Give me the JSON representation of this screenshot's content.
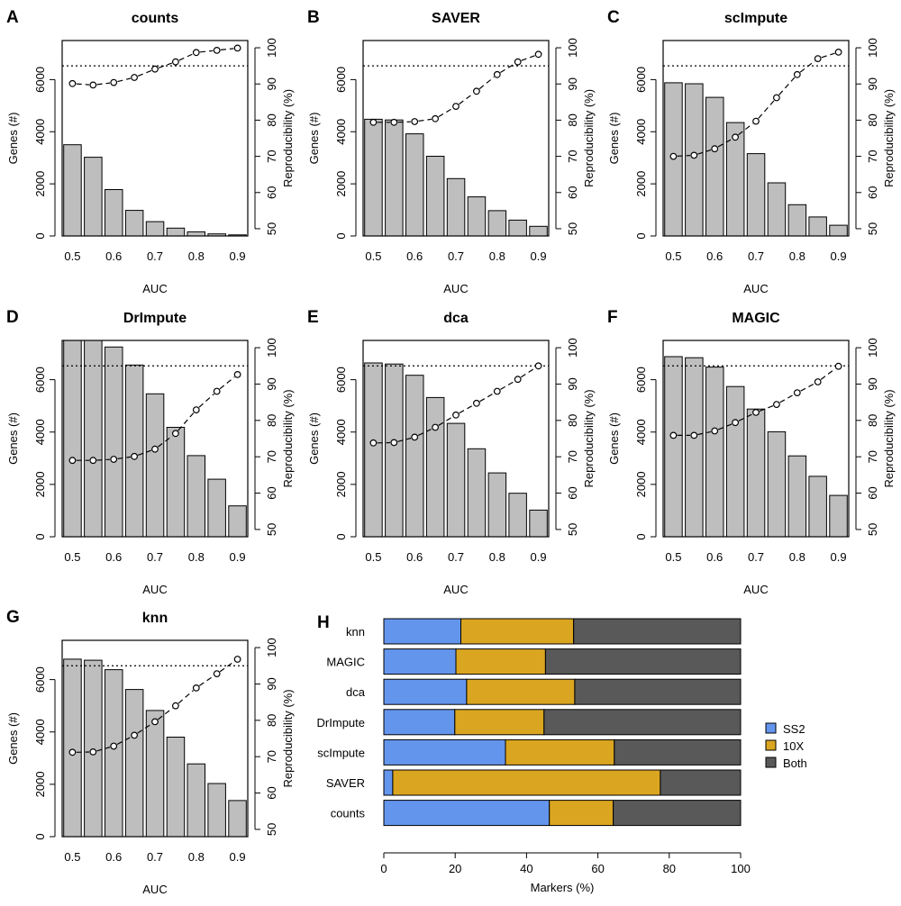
{
  "chart_data": [
    {
      "panel": "A",
      "title": "counts",
      "type": "bar",
      "xlabel": "AUC",
      "ylabel": "Genes (#)",
      "y2label": "Reproducibility (%)",
      "categories": [
        0.5,
        0.55,
        0.6,
        0.65,
        0.7,
        0.75,
        0.8,
        0.85,
        0.9
      ],
      "bars": [
        3500,
        3020,
        1780,
        980,
        550,
        300,
        160,
        80,
        40
      ],
      "line": [
        90.1,
        89.7,
        90.4,
        91.8,
        94.1,
        96.1,
        98.7,
        99.3,
        99.9
      ],
      "reference_line": 95,
      "xlim": [
        0.475,
        0.925
      ],
      "ylim": [
        0,
        7500
      ],
      "y2lim": [
        48,
        102
      ],
      "xticks": [
        "0.5",
        "0.6",
        "0.7",
        "0.8",
        "0.9"
      ],
      "yticks": [
        "0",
        "2000",
        "4000",
        "6000"
      ],
      "y2ticks": [
        "50",
        "60",
        "70",
        "80",
        "90",
        "100"
      ]
    },
    {
      "panel": "B",
      "title": "SAVER",
      "type": "bar",
      "xlabel": "AUC",
      "ylabel": "Genes (#)",
      "y2label": "Reproducibility (%)",
      "categories": [
        0.5,
        0.55,
        0.6,
        0.65,
        0.7,
        0.75,
        0.8,
        0.85,
        0.9
      ],
      "bars": [
        4480,
        4450,
        3920,
        3060,
        2200,
        1500,
        970,
        610,
        370
      ],
      "line": [
        79.4,
        79.4,
        79.6,
        80.4,
        83.8,
        88.0,
        92.6,
        96.1,
        98.2
      ],
      "reference_line": 95,
      "xlim": [
        0.475,
        0.925
      ],
      "ylim": [
        0,
        7500
      ],
      "y2lim": [
        48,
        102
      ],
      "xticks": [
        "0.5",
        "0.6",
        "0.7",
        "0.8",
        "0.9"
      ],
      "yticks": [
        "0",
        "2000",
        "4000",
        "6000"
      ],
      "y2ticks": [
        "50",
        "60",
        "70",
        "80",
        "90",
        "100"
      ]
    },
    {
      "panel": "C",
      "title": "scImpute",
      "type": "bar",
      "xlabel": "AUC",
      "ylabel": "Genes (#)",
      "y2label": "Reproducibility (%)",
      "categories": [
        0.5,
        0.55,
        0.6,
        0.65,
        0.7,
        0.75,
        0.8,
        0.85,
        0.9
      ],
      "bars": [
        5880,
        5840,
        5320,
        4350,
        3160,
        2040,
        1200,
        730,
        410
      ],
      "line": [
        70.0,
        70.3,
        72.1,
        75.3,
        79.7,
        86.2,
        92.6,
        97.0,
        98.8
      ],
      "reference_line": 95,
      "xlim": [
        0.475,
        0.925
      ],
      "ylim": [
        0,
        7500
      ],
      "y2lim": [
        48,
        102
      ],
      "xticks": [
        "0.5",
        "0.6",
        "0.7",
        "0.8",
        "0.9"
      ],
      "yticks": [
        "0",
        "2000",
        "4000",
        "6000"
      ],
      "y2ticks": [
        "50",
        "60",
        "70",
        "80",
        "90",
        "100"
      ]
    },
    {
      "panel": "D",
      "title": "DrImpute",
      "type": "bar",
      "xlabel": "AUC",
      "ylabel": "Genes (#)",
      "y2label": "Reproducibility (%)",
      "categories": [
        0.5,
        0.55,
        0.6,
        0.65,
        0.7,
        0.75,
        0.8,
        0.85,
        0.9
      ],
      "bars": [
        7500,
        7500,
        7250,
        6560,
        5460,
        4180,
        3100,
        2200,
        1180
      ],
      "line": [
        69.0,
        69.0,
        69.3,
        70.1,
        72.1,
        76.4,
        82.9,
        88.0,
        92.6
      ],
      "reference_line": 95,
      "xlim": [
        0.475,
        0.925
      ],
      "ylim": [
        0,
        7500
      ],
      "y2lim": [
        48,
        102
      ],
      "xticks": [
        "0.5",
        "0.6",
        "0.7",
        "0.8",
        "0.9"
      ],
      "yticks": [
        "0",
        "2000",
        "4000",
        "6000"
      ],
      "y2ticks": [
        "50",
        "60",
        "70",
        "80",
        "90",
        "100"
      ]
    },
    {
      "panel": "E",
      "title": "dca",
      "type": "bar",
      "xlabel": "AUC",
      "ylabel": "Genes (#)",
      "y2label": "Reproducibility (%)",
      "categories": [
        0.5,
        0.55,
        0.6,
        0.65,
        0.7,
        0.75,
        0.8,
        0.85,
        0.9
      ],
      "bars": [
        6640,
        6600,
        6170,
        5320,
        4330,
        3360,
        2440,
        1660,
        1020
      ],
      "line": [
        73.8,
        73.9,
        75.4,
        78.1,
        81.5,
        84.7,
        88.0,
        91.3,
        95.0
      ],
      "reference_line": 95,
      "xlim": [
        0.475,
        0.925
      ],
      "ylim": [
        0,
        7500
      ],
      "y2lim": [
        48,
        102
      ],
      "xticks": [
        "0.5",
        "0.6",
        "0.7",
        "0.8",
        "0.9"
      ],
      "yticks": [
        "0",
        "2000",
        "4000",
        "6000"
      ],
      "y2ticks": [
        "50",
        "60",
        "70",
        "80",
        "90",
        "100"
      ]
    },
    {
      "panel": "F",
      "title": "MAGIC",
      "type": "bar",
      "xlabel": "AUC",
      "ylabel": "Genes (#)",
      "y2label": "Reproducibility (%)",
      "categories": [
        0.5,
        0.55,
        0.6,
        0.65,
        0.7,
        0.75,
        0.8,
        0.85,
        0.9
      ],
      "bars": [
        6880,
        6840,
        6480,
        5740,
        4880,
        4010,
        3090,
        2310,
        1580
      ],
      "line": [
        75.9,
        75.9,
        77.1,
        79.4,
        82.2,
        84.4,
        87.6,
        90.6,
        94.9
      ],
      "reference_line": 95,
      "xlim": [
        0.475,
        0.925
      ],
      "ylim": [
        0,
        7500
      ],
      "y2lim": [
        48,
        102
      ],
      "xticks": [
        "0.5",
        "0.6",
        "0.7",
        "0.8",
        "0.9"
      ],
      "yticks": [
        "0",
        "2000",
        "4000",
        "6000"
      ],
      "y2ticks": [
        "50",
        "60",
        "70",
        "80",
        "90",
        "100"
      ]
    },
    {
      "panel": "G",
      "title": "knn",
      "type": "bar",
      "xlabel": "AUC",
      "ylabel": "Genes (#)",
      "y2label": "Reproducibility (%)",
      "categories": [
        0.5,
        0.55,
        0.6,
        0.65,
        0.7,
        0.75,
        0.8,
        0.85,
        0.9
      ],
      "bars": [
        6780,
        6740,
        6380,
        5620,
        4820,
        3800,
        2780,
        2030,
        1380
      ],
      "line": [
        71.2,
        71.3,
        72.9,
        75.9,
        79.6,
        84.0,
        88.9,
        92.8,
        96.8
      ],
      "reference_line": 95,
      "xlim": [
        0.475,
        0.925
      ],
      "ylim": [
        0,
        7500
      ],
      "y2lim": [
        48,
        102
      ],
      "xticks": [
        "0.5",
        "0.6",
        "0.7",
        "0.8",
        "0.9"
      ],
      "yticks": [
        "0",
        "2000",
        "4000",
        "6000"
      ],
      "y2ticks": [
        "50",
        "60",
        "70",
        "80",
        "90",
        "100"
      ]
    },
    {
      "panel": "H",
      "type": "bar",
      "orientation": "horizontal",
      "stacked": true,
      "xlabel": "Markers (%)",
      "categories": [
        "knn",
        "MAGIC",
        "dca",
        "DrImpute",
        "scImpute",
        "SAVER",
        "counts"
      ],
      "series": [
        {
          "name": "SS2",
          "values": [
            21.6,
            20.2,
            23.2,
            19.9,
            34.1,
            2.5,
            46.4
          ],
          "color": "#6495ed"
        },
        {
          "name": "10X",
          "values": [
            31.6,
            25.1,
            30.3,
            25.0,
            30.5,
            75.0,
            17.9
          ],
          "color": "#daa520"
        },
        {
          "name": "Both",
          "values": [
            46.8,
            54.7,
            46.5,
            55.1,
            35.4,
            22.5,
            35.7
          ],
          "color": "#595959"
        }
      ],
      "xlim": [
        0,
        100
      ],
      "xticks": [
        "0",
        "20",
        "40",
        "60",
        "80",
        "100"
      ],
      "legend": "right"
    }
  ]
}
